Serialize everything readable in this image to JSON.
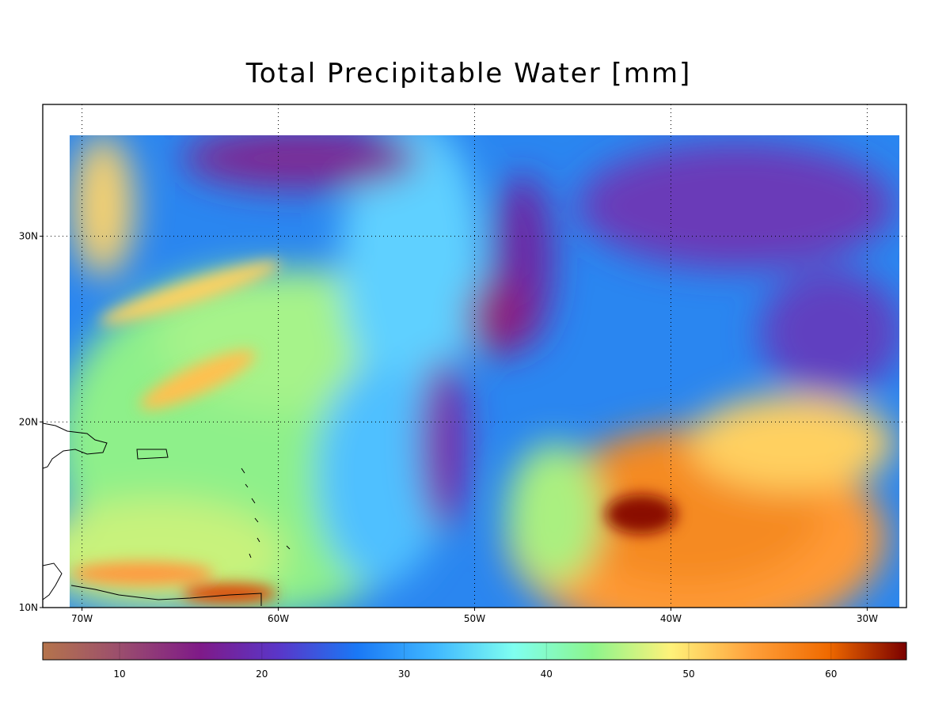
{
  "title": "Total Precipitable Water [mm]",
  "map": {
    "xlim": [
      -72,
      -28
    ],
    "ylim": [
      10,
      37.1
    ],
    "xticks": [
      {
        "value": -70,
        "label": "70W"
      },
      {
        "value": -60,
        "label": "60W"
      },
      {
        "value": -50,
        "label": "50W"
      },
      {
        "value": -40,
        "label": "40W"
      },
      {
        "value": -30,
        "label": "30W"
      }
    ],
    "yticks": [
      {
        "value": 10,
        "label": "10N"
      },
      {
        "value": 20,
        "label": "20N"
      },
      {
        "value": 30,
        "label": "30N"
      }
    ],
    "grid": true
  },
  "colorbar": {
    "lim": [
      4.6,
      65.3
    ],
    "ticks": [
      10,
      20,
      30,
      40,
      50,
      60
    ],
    "colors": [
      "#b5744c",
      "#9a4d6e",
      "#7f1a88",
      "#5a36c8",
      "#1a78f5",
      "#40b8ff",
      "#7ffff0",
      "#8cf58c",
      "#fff27a",
      "#ffa23c",
      "#f06a00",
      "#7a0000"
    ]
  }
}
